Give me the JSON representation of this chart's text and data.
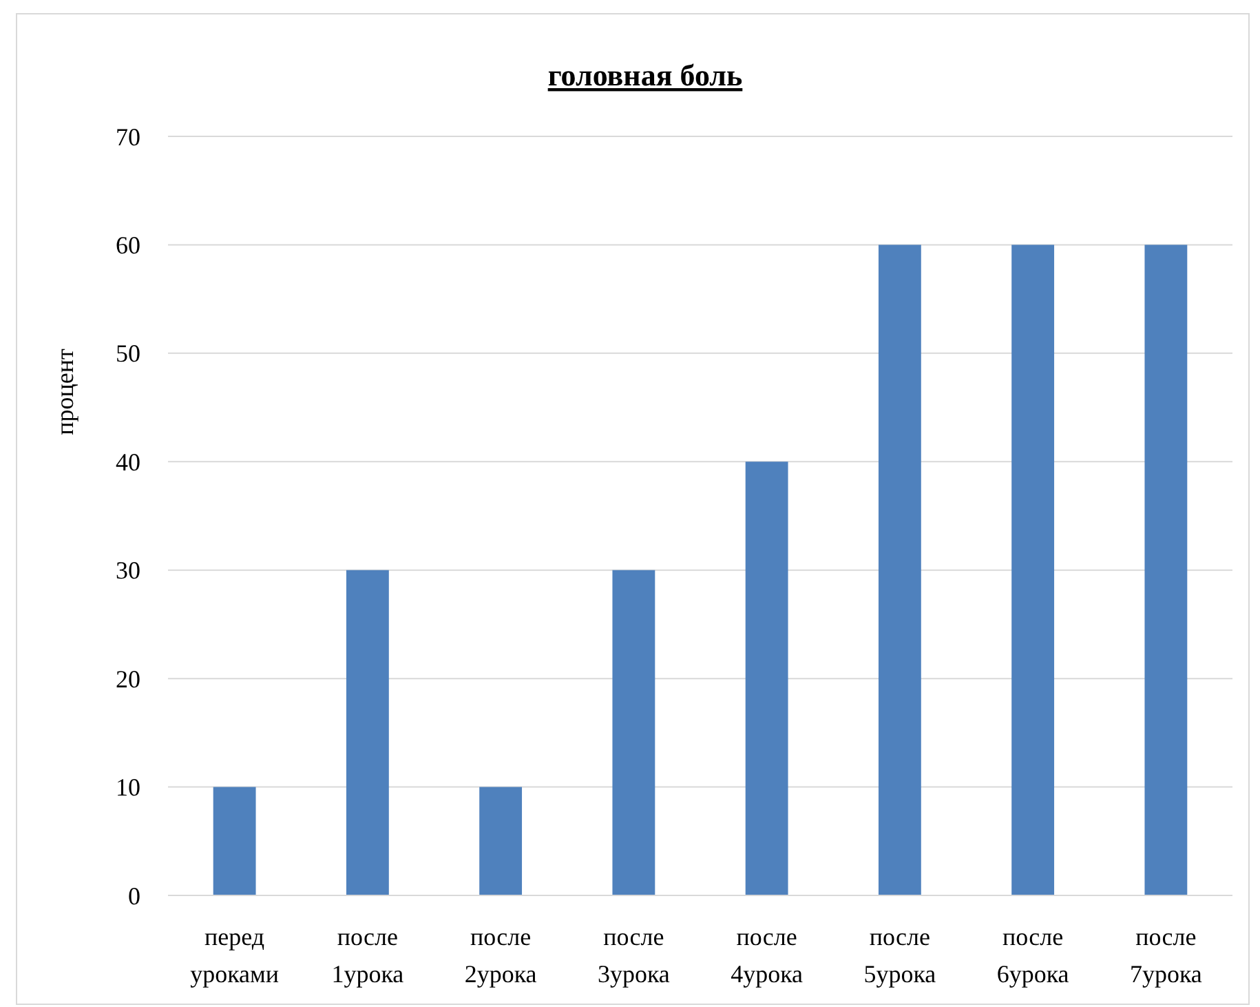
{
  "chart_data": {
    "type": "bar",
    "title": "головная боль",
    "ylabel": "процент",
    "categories": [
      "перед уроками",
      "после 1урока",
      "после 2урока",
      "после 3урока",
      "после 4урока",
      "после 5урока",
      "после 6урока",
      "после 7урока"
    ],
    "values": [
      10,
      30,
      10,
      30,
      40,
      60,
      60,
      60
    ],
    "color": "#4f81bd",
    "ylim": [
      0,
      70
    ],
    "yticks": [
      0,
      10,
      20,
      30,
      40,
      50,
      60,
      70
    ],
    "grid": "y"
  }
}
